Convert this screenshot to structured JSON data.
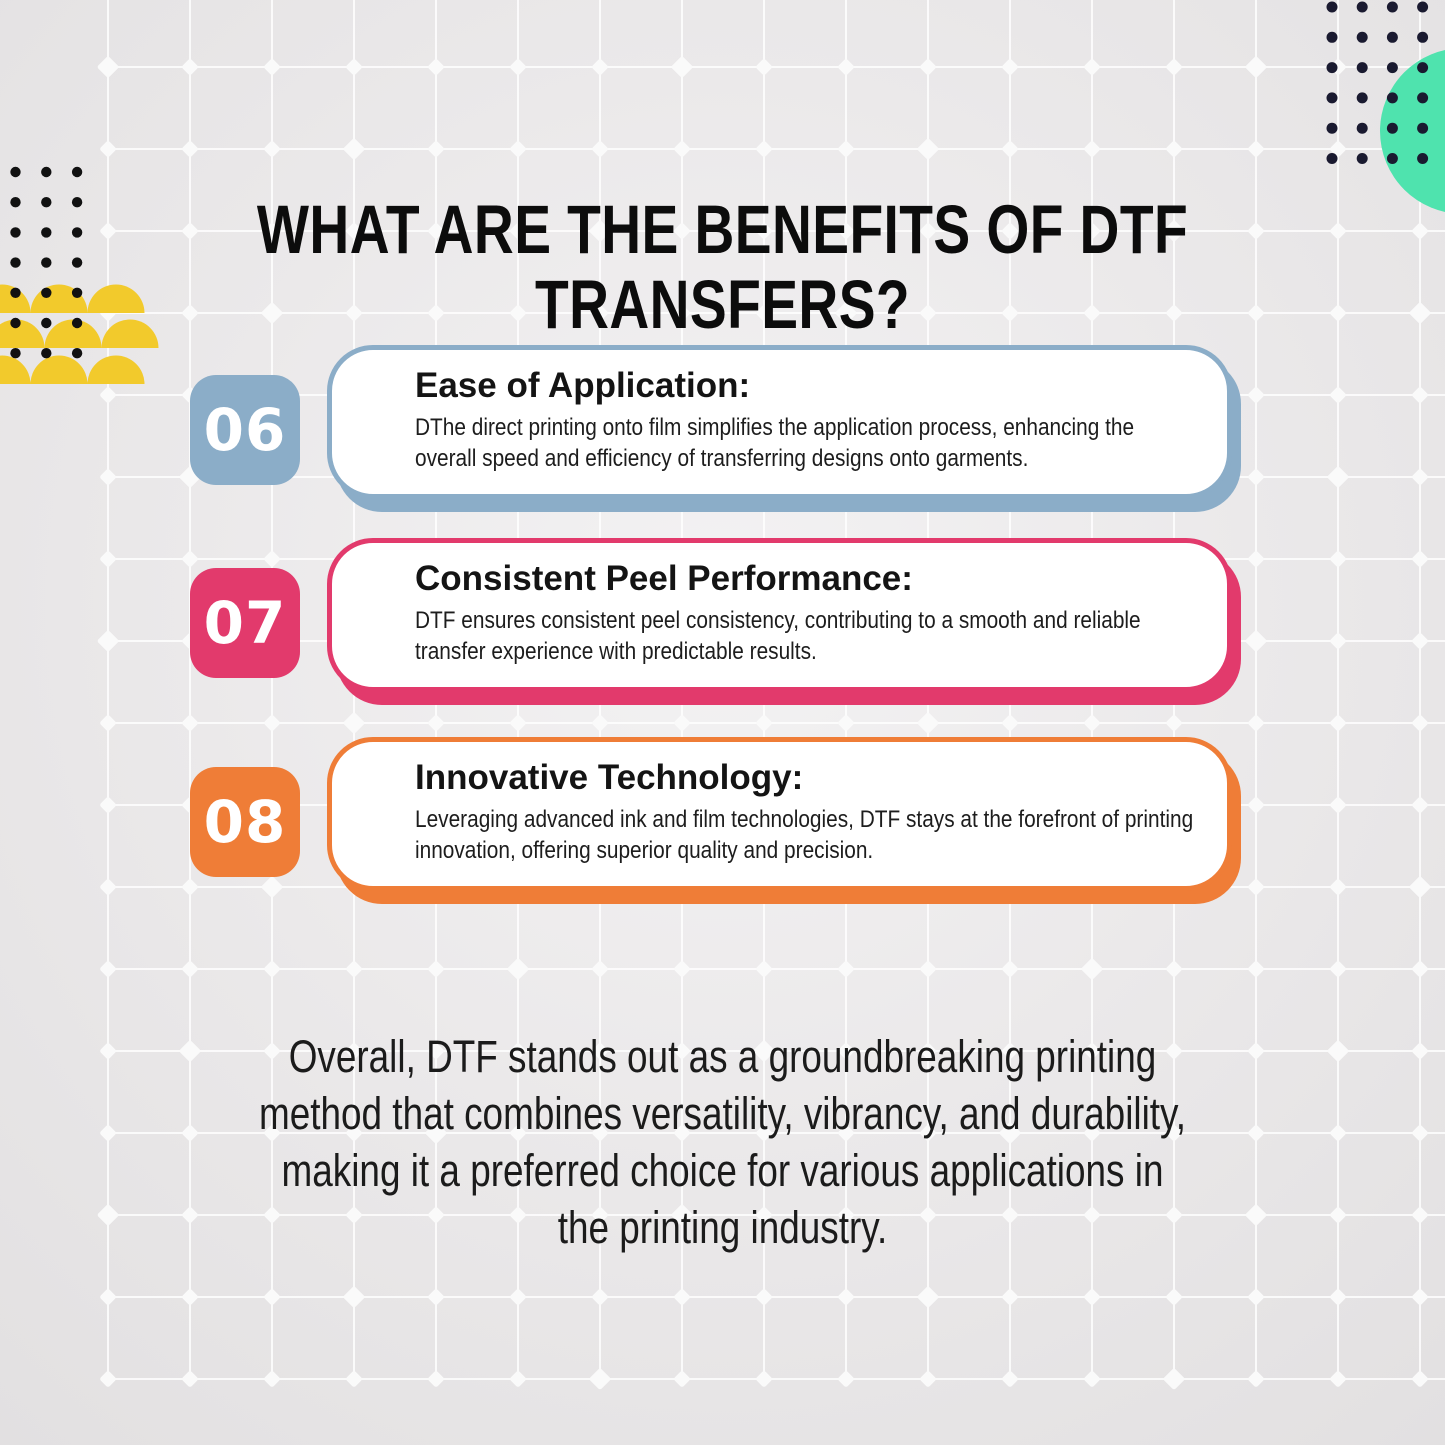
{
  "header": {
    "title_line1": "WHAT ARE THE BENEFITS OF DTF",
    "title_line2": "TRANSFERS?"
  },
  "benefits": [
    {
      "number": "06",
      "accent": "#8badc8",
      "title": "Ease of Application:",
      "description": "DThe direct printing onto film simplifies the application process, enhancing the overall speed and efficiency of transferring designs onto garments."
    },
    {
      "number": "07",
      "accent": "#e23a6c",
      "title": "Consistent Peel Performance:",
      "description": "DTF ensures consistent peel consistency, contributing to a smooth and reliable transfer experience with predictable results."
    },
    {
      "number": "08",
      "accent": "#ef7d37",
      "title": "Innovative Technology:",
      "description": "Leveraging advanced ink and film technologies, DTF stays at the forefront of printing innovation, offering superior quality and precision."
    }
  ],
  "conclusion_lines": [
    "Overall, DTF stands out as a groundbreaking printing",
    "method that combines versatility, vibrancy, and durability,",
    "making it a preferred choice for various applications in",
    "the printing industry."
  ],
  "decor": {
    "colors": {
      "grid_line": "#ffffff",
      "grid_diamond": "#fafafa",
      "yellow": "#f2ca2c",
      "teal": "#4fe3ae",
      "dots_left": "#111111",
      "dots_right": "#1a1a30"
    }
  }
}
